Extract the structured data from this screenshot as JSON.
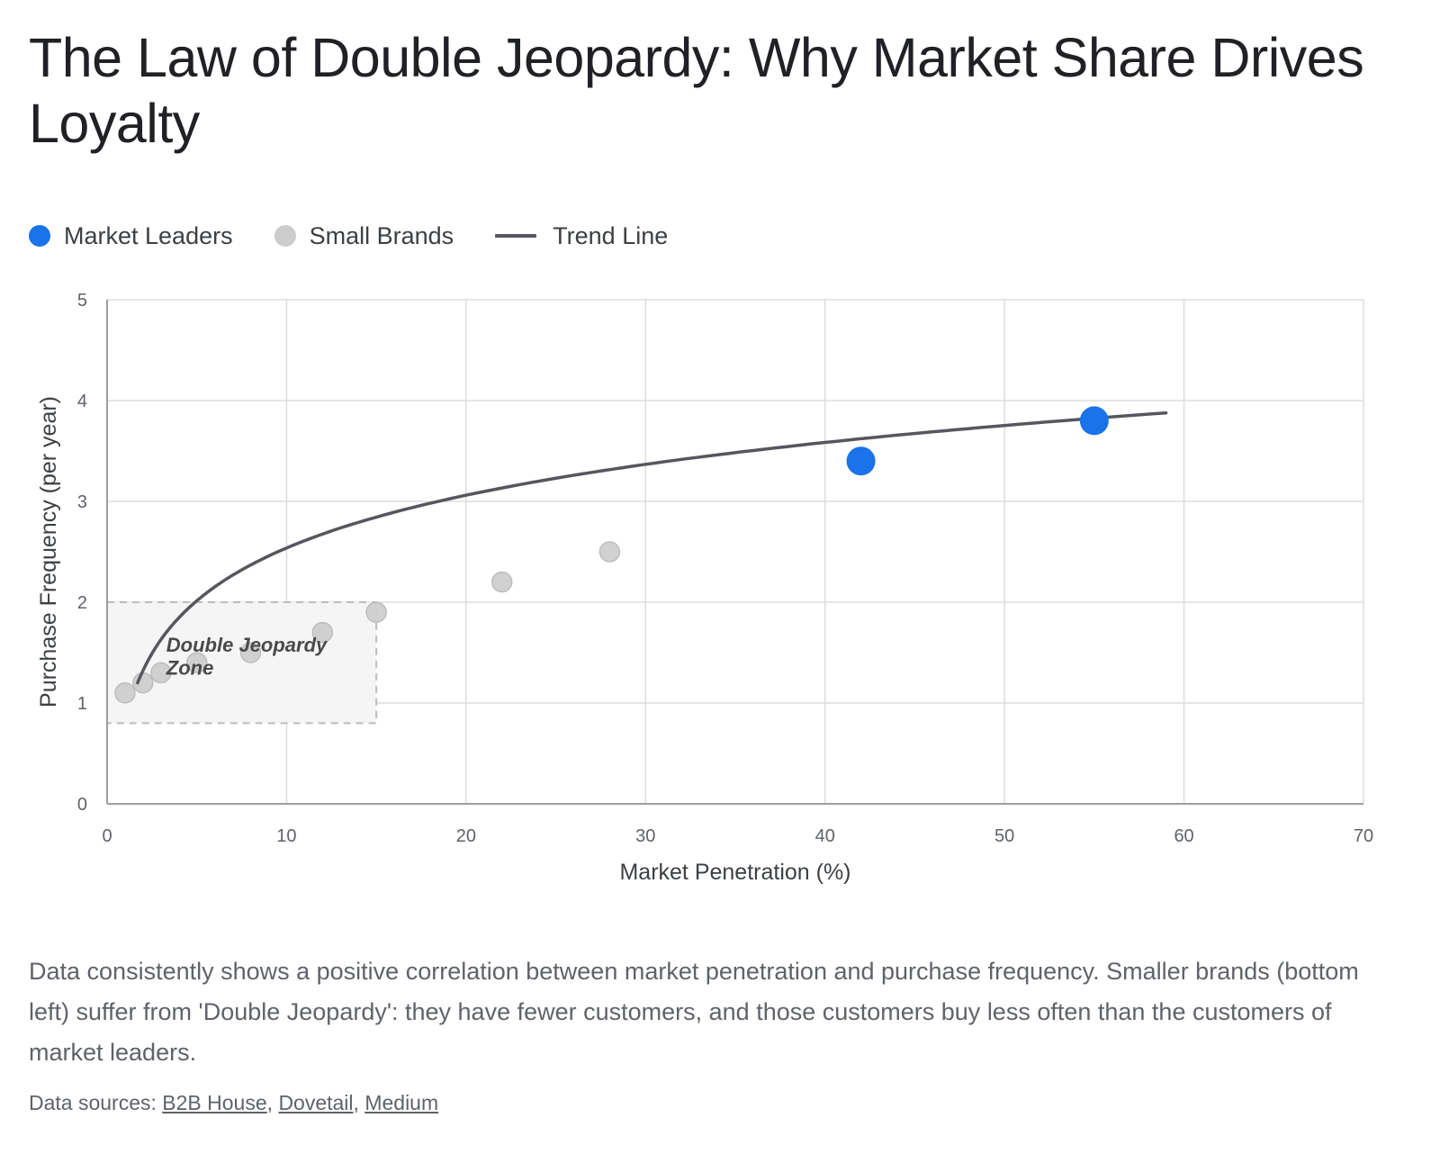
{
  "title": "The Law of Double Jeopardy: Why Market Share Drives Loyalty",
  "colors": {
    "leaders": "#1a73e8",
    "small": "#cccccc",
    "trend": "#55575c",
    "grid": "#dddddd",
    "zone_fill": "#f5f5f5",
    "zone_border": "#bdbdbd"
  },
  "legend": {
    "leaders": "Market Leaders",
    "small": "Small Brands",
    "trend": "Trend Line"
  },
  "chart_data": {
    "type": "scatter",
    "xlabel": "Market Penetration (%)",
    "ylabel": "Purchase Frequency (per year)",
    "xlim": [
      0,
      70
    ],
    "ylim": [
      0,
      5
    ],
    "x_ticks": [
      "0",
      "10",
      "20",
      "30",
      "40",
      "50",
      "60",
      "70"
    ],
    "y_ticks": [
      "0",
      "1",
      "2",
      "3",
      "4",
      "5"
    ],
    "grid": true,
    "series": [
      {
        "name": "Market Leaders",
        "points": [
          [
            42,
            3.4
          ],
          [
            55,
            3.8
          ]
        ]
      },
      {
        "name": "Small Brands",
        "points": [
          [
            1,
            1.1
          ],
          [
            2,
            1.2
          ],
          [
            3,
            1.3
          ],
          [
            5,
            1.4
          ],
          [
            8,
            1.5
          ],
          [
            12,
            1.7
          ],
          [
            15,
            1.9
          ],
          [
            22,
            2.2
          ],
          [
            28,
            2.5
          ]
        ]
      },
      {
        "name": "Trend Line",
        "type": "line",
        "x_range": [
          1.7,
          59
        ]
      }
    ],
    "annotation": {
      "label_line1": "Double Jeopardy",
      "label_line2": "Zone",
      "x_range": [
        0,
        15
      ],
      "y_range": [
        0.8,
        2
      ]
    }
  },
  "description": "Data consistently shows a positive correlation between market penetration and purchase frequency. Smaller brands (bottom left) suffer from 'Double Jeopardy': they have fewer customers, and those customers buy less often than the customers of market leaders.",
  "sources": {
    "prefix": "Data sources: ",
    "links": [
      "B2B House",
      "Dovetail",
      "Medium"
    ],
    "separator": ", "
  }
}
